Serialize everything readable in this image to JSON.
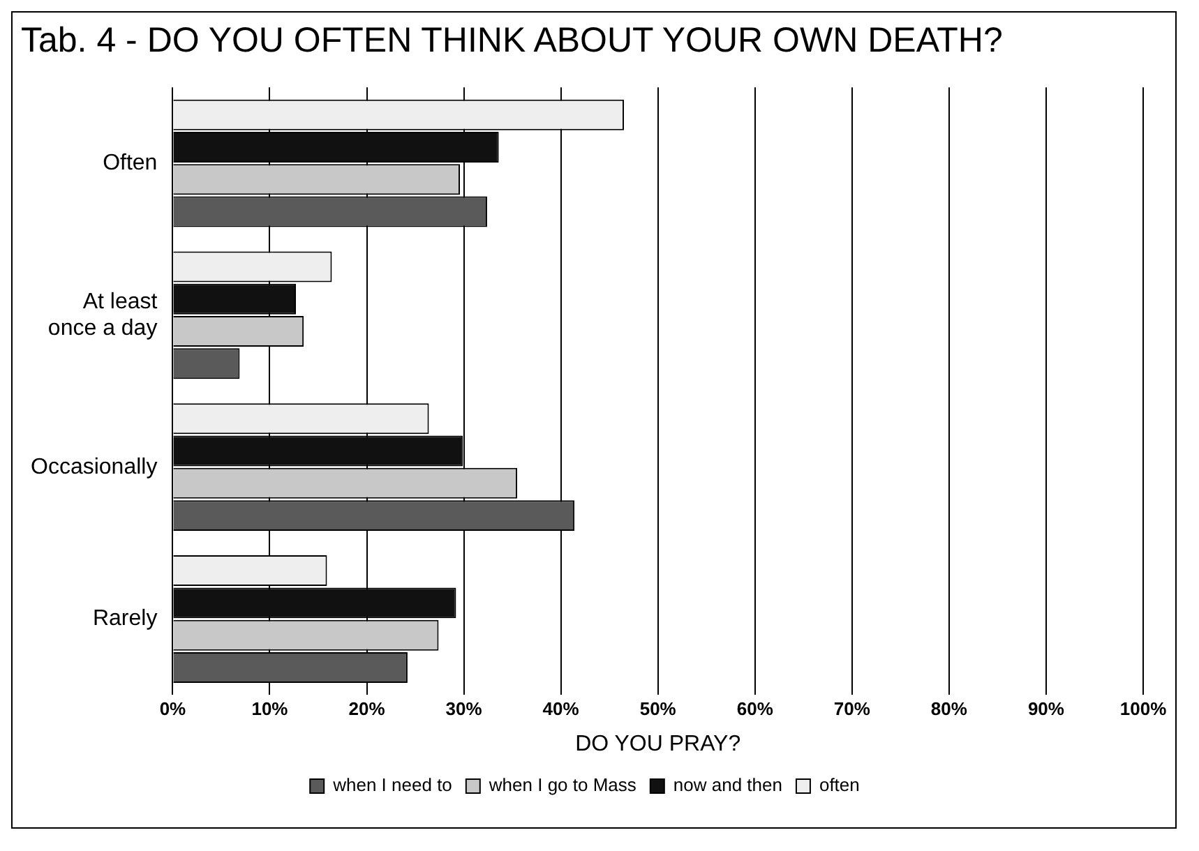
{
  "chart_data": {
    "type": "bar",
    "orientation": "horizontal",
    "title": "Tab. 4 - DO YOU OFTEN THINK ABOUT YOUR OWN DEATH?",
    "xlabel": "DO YOU PRAY?",
    "categories": [
      "Often",
      "At least once a day",
      "Occasionally",
      "Rarely"
    ],
    "series": [
      {
        "name": "often",
        "color": "#eeeeee",
        "values": [
          46.5,
          16.4,
          26.4,
          15.9
        ]
      },
      {
        "name": "now and then",
        "color": "#111111",
        "values": [
          33.6,
          12.7,
          29.9,
          29.2
        ]
      },
      {
        "name": "when I go to Mass",
        "color": "#c8c8c8",
        "values": [
          29.6,
          13.5,
          35.5,
          27.4
        ]
      },
      {
        "name": "when I need to",
        "color": "#5a5a5a",
        "values": [
          32.4,
          6.9,
          41.4,
          24.2
        ]
      }
    ],
    "xlim": [
      0,
      100
    ],
    "xticks": [
      {
        "value": 0,
        "label": "0%"
      },
      {
        "value": 10,
        "label": "10%"
      },
      {
        "value": 20,
        "label": "20%"
      },
      {
        "value": 30,
        "label": "30%"
      },
      {
        "value": 40,
        "label": "40%"
      },
      {
        "value": 50,
        "label": "50%"
      },
      {
        "value": 60,
        "label": "60%"
      },
      {
        "value": 70,
        "label": "70%"
      },
      {
        "value": 80,
        "label": "80%"
      },
      {
        "value": 90,
        "label": "90%"
      },
      {
        "value": 100,
        "label": "100%"
      }
    ],
    "grid": "x",
    "legend": "bottom"
  }
}
